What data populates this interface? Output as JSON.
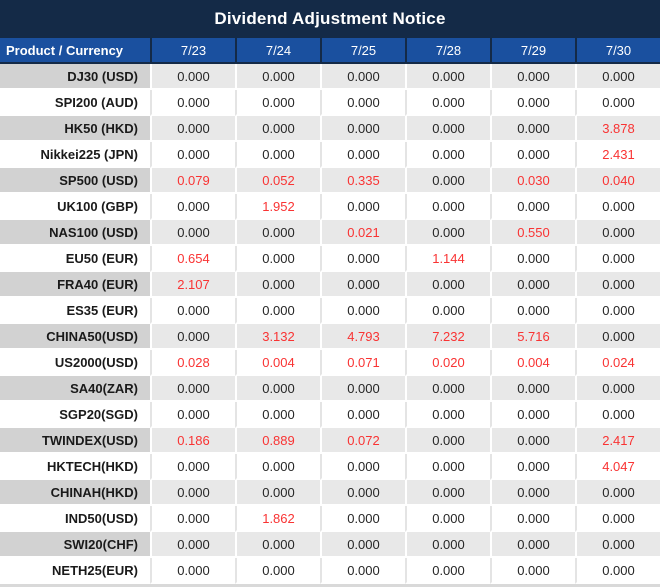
{
  "title": "Dividend Adjustment Notice",
  "colors": {
    "title_bg": "#142a47",
    "header_bg": "#1a509f",
    "red": "#f93333",
    "rowname_bg": "#d2d2d2",
    "rowval_bg": "#e8e8e8"
  },
  "table": {
    "header": [
      "Product / Currency",
      "7/23",
      "7/24",
      "7/25",
      "7/28",
      "7/29",
      "7/30"
    ],
    "rows": [
      {
        "product": "DJ30 (USD)",
        "values": [
          "0.000",
          "0.000",
          "0.000",
          "0.000",
          "0.000",
          "0.000"
        ],
        "red": [
          false,
          false,
          false,
          false,
          false,
          false
        ]
      },
      {
        "product": "SPI200 (AUD)",
        "values": [
          "0.000",
          "0.000",
          "0.000",
          "0.000",
          "0.000",
          "0.000"
        ],
        "red": [
          false,
          false,
          false,
          false,
          false,
          false
        ]
      },
      {
        "product": "HK50 (HKD)",
        "values": [
          "0.000",
          "0.000",
          "0.000",
          "0.000",
          "0.000",
          "3.878"
        ],
        "red": [
          false,
          false,
          false,
          false,
          false,
          true
        ]
      },
      {
        "product": "Nikkei225 (JPN)",
        "values": [
          "0.000",
          "0.000",
          "0.000",
          "0.000",
          "0.000",
          "2.431"
        ],
        "red": [
          false,
          false,
          false,
          false,
          false,
          true
        ]
      },
      {
        "product": "SP500 (USD)",
        "values": [
          "0.079",
          "0.052",
          "0.335",
          "0.000",
          "0.030",
          "0.040"
        ],
        "red": [
          true,
          true,
          true,
          false,
          true,
          true
        ]
      },
      {
        "product": "UK100 (GBP)",
        "values": [
          "0.000",
          "1.952",
          "0.000",
          "0.000",
          "0.000",
          "0.000"
        ],
        "red": [
          false,
          true,
          false,
          false,
          false,
          false
        ]
      },
      {
        "product": "NAS100 (USD)",
        "values": [
          "0.000",
          "0.000",
          "0.021",
          "0.000",
          "0.550",
          "0.000"
        ],
        "red": [
          false,
          false,
          true,
          false,
          true,
          false
        ]
      },
      {
        "product": "EU50 (EUR)",
        "values": [
          "0.654",
          "0.000",
          "0.000",
          "1.144",
          "0.000",
          "0.000"
        ],
        "red": [
          true,
          false,
          false,
          true,
          false,
          false
        ]
      },
      {
        "product": "FRA40 (EUR)",
        "values": [
          "2.107",
          "0.000",
          "0.000",
          "0.000",
          "0.000",
          "0.000"
        ],
        "red": [
          true,
          false,
          false,
          false,
          false,
          false
        ]
      },
      {
        "product": "ES35 (EUR)",
        "values": [
          "0.000",
          "0.000",
          "0.000",
          "0.000",
          "0.000",
          "0.000"
        ],
        "red": [
          false,
          false,
          false,
          false,
          false,
          false
        ]
      },
      {
        "product": "CHINA50(USD)",
        "values": [
          "0.000",
          "3.132",
          "4.793",
          "7.232",
          "5.716",
          "0.000"
        ],
        "red": [
          false,
          true,
          true,
          true,
          true,
          false
        ]
      },
      {
        "product": "US2000(USD)",
        "values": [
          "0.028",
          "0.004",
          "0.071",
          "0.020",
          "0.004",
          "0.024"
        ],
        "red": [
          true,
          true,
          true,
          true,
          true,
          true
        ]
      },
      {
        "product": "SA40(ZAR)",
        "values": [
          "0.000",
          "0.000",
          "0.000",
          "0.000",
          "0.000",
          "0.000"
        ],
        "red": [
          false,
          false,
          false,
          false,
          false,
          false
        ]
      },
      {
        "product": "SGP20(SGD)",
        "values": [
          "0.000",
          "0.000",
          "0.000",
          "0.000",
          "0.000",
          "0.000"
        ],
        "red": [
          false,
          false,
          false,
          false,
          false,
          false
        ]
      },
      {
        "product": "TWINDEX(USD)",
        "values": [
          "0.186",
          "0.889",
          "0.072",
          "0.000",
          "0.000",
          "2.417"
        ],
        "red": [
          true,
          true,
          true,
          false,
          false,
          true
        ]
      },
      {
        "product": "HKTECH(HKD)",
        "values": [
          "0.000",
          "0.000",
          "0.000",
          "0.000",
          "0.000",
          "4.047"
        ],
        "red": [
          false,
          false,
          false,
          false,
          false,
          true
        ]
      },
      {
        "product": "CHINAH(HKD)",
        "values": [
          "0.000",
          "0.000",
          "0.000",
          "0.000",
          "0.000",
          "0.000"
        ],
        "red": [
          false,
          false,
          false,
          false,
          false,
          false
        ]
      },
      {
        "product": "IND50(USD)",
        "values": [
          "0.000",
          "1.862",
          "0.000",
          "0.000",
          "0.000",
          "0.000"
        ],
        "red": [
          false,
          true,
          false,
          false,
          false,
          false
        ]
      },
      {
        "product": "SWI20(CHF)",
        "values": [
          "0.000",
          "0.000",
          "0.000",
          "0.000",
          "0.000",
          "0.000"
        ],
        "red": [
          false,
          false,
          false,
          false,
          false,
          false
        ]
      },
      {
        "product": "NETH25(EUR)",
        "values": [
          "0.000",
          "0.000",
          "0.000",
          "0.000",
          "0.000",
          "0.000"
        ],
        "red": [
          false,
          false,
          false,
          false,
          false,
          false
        ]
      }
    ]
  }
}
